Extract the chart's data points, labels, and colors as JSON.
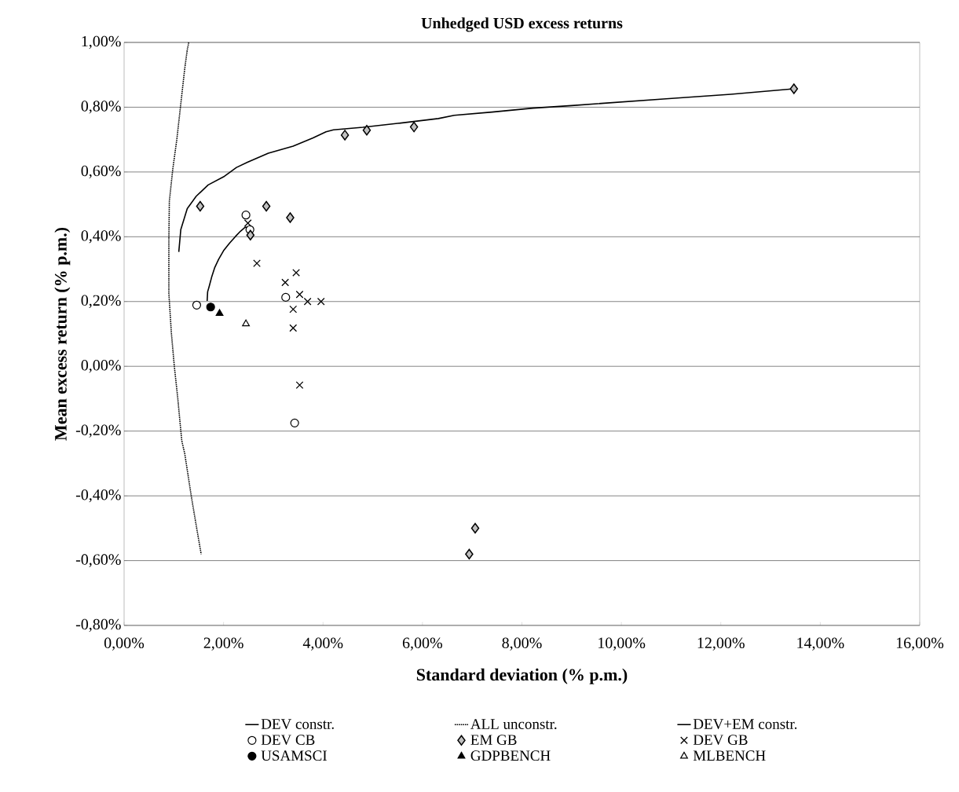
{
  "chart_data": {
    "type": "scatter",
    "title": "Unhedged USD excess returns",
    "xlabel": "Standard deviation (% p.m.)",
    "ylabel": "Mean excess return (% p.m.)",
    "xlim": [
      0,
      16
    ],
    "ylim": [
      -0.8,
      1.0
    ],
    "xticks": [
      {
        "value": 0,
        "label": "0,00%"
      },
      {
        "value": 2,
        "label": "2,00%"
      },
      {
        "value": 4,
        "label": "4,00%"
      },
      {
        "value": 6,
        "label": "6,00%"
      },
      {
        "value": 8,
        "label": "8,00%"
      },
      {
        "value": 10,
        "label": "10,00%"
      },
      {
        "value": 12,
        "label": "12,00%"
      },
      {
        "value": 14,
        "label": "14,00%"
      },
      {
        "value": 16,
        "label": "16,00%"
      }
    ],
    "yticks": [
      {
        "value": -0.8,
        "label": "-0,80%"
      },
      {
        "value": -0.6,
        "label": "-0,60%"
      },
      {
        "value": -0.4,
        "label": "-0,40%"
      },
      {
        "value": -0.2,
        "label": "-0,20%"
      },
      {
        "value": 0,
        "label": "0,00%"
      },
      {
        "value": 0.2,
        "label": "0,20%"
      },
      {
        "value": 0.4,
        "label": "0,40%"
      },
      {
        "value": 0.6,
        "label": "0,60%"
      },
      {
        "value": 0.8,
        "label": "0,80%"
      },
      {
        "value": 1.0,
        "label": "1,00%"
      }
    ],
    "grid": "y",
    "legend": "bottom",
    "series": [
      {
        "name": "DEV constr.",
        "type": "line",
        "marker": "none",
        "line_style": "solid",
        "color": "#000000",
        "x": [
          1.67,
          1.68,
          1.71,
          1.76,
          1.82,
          1.9,
          2.0,
          2.12,
          2.24,
          2.34,
          2.44,
          2.53
        ],
        "values": [
          0.202,
          0.23,
          0.246,
          0.275,
          0.304,
          0.33,
          0.357,
          0.38,
          0.401,
          0.417,
          0.43,
          0.425
        ]
      },
      {
        "name": "ALL unconstr.",
        "type": "line",
        "marker": "none",
        "line_style": "dotted",
        "color": "#000000",
        "x": [
          1.3,
          1.27,
          1.22,
          1.14,
          1.06,
          0.98,
          0.91,
          0.9,
          0.9,
          0.95,
          1.01,
          1.08,
          1.16,
          1.22,
          1.35,
          1.46,
          1.55
        ],
        "values": [
          1.0,
          0.977,
          0.92,
          0.81,
          0.7,
          0.61,
          0.51,
          0.39,
          0.226,
          0.104,
          0.0,
          -0.1,
          -0.23,
          -0.27,
          -0.4,
          -0.5,
          -0.58
        ]
      },
      {
        "name": "DEV+EM constr.",
        "type": "line",
        "marker": "none",
        "line_style": "solid",
        "color": "#000000",
        "x": [
          1.1,
          1.14,
          1.27,
          1.45,
          1.69,
          2.0,
          2.26,
          2.48,
          2.9,
          3.4,
          3.8,
          4.06,
          4.21,
          4.8,
          5.5,
          6.32,
          6.64,
          7.4,
          8.22,
          9.0,
          10.9,
          12.2,
          13.47
        ],
        "values": [
          0.353,
          0.422,
          0.487,
          0.525,
          0.56,
          0.585,
          0.614,
          0.63,
          0.658,
          0.68,
          0.705,
          0.724,
          0.73,
          0.738,
          0.75,
          0.765,
          0.775,
          0.785,
          0.797,
          0.805,
          0.826,
          0.84,
          0.857
        ]
      },
      {
        "name": "DEV CB",
        "marker": "circle",
        "color": "#ffffff",
        "x": [
          1.46,
          3.25,
          2.53,
          2.45,
          3.43
        ],
        "values": [
          0.189,
          0.213,
          0.422,
          0.467,
          -0.175
        ]
      },
      {
        "name": "EM GB",
        "marker": "diamond",
        "color": "#c0c0c0",
        "x": [
          1.53,
          2.86,
          2.54,
          3.34,
          4.44,
          4.88,
          5.83,
          13.47,
          7.06,
          6.94
        ],
        "values": [
          0.494,
          0.494,
          0.405,
          0.459,
          0.714,
          0.729,
          0.739,
          0.857,
          -0.5,
          -0.58
        ]
      },
      {
        "name": "DEV GB",
        "marker": "cross",
        "color": "#000000",
        "x": [
          2.49,
          2.67,
          3.46,
          3.24,
          3.53,
          3.69,
          3.96,
          3.4,
          3.4,
          3.53
        ],
        "values": [
          0.442,
          0.318,
          0.289,
          0.259,
          0.222,
          0.2,
          0.2,
          0.176,
          0.118,
          -0.058
        ]
      },
      {
        "name": "USAMSCI",
        "marker": "circle",
        "color": "#000000",
        "x": [
          1.74
        ],
        "values": [
          0.183
        ]
      },
      {
        "name": "GDPBENCH",
        "marker": "triangle",
        "color": "#000000",
        "x": [
          1.92
        ],
        "values": [
          0.163
        ]
      },
      {
        "name": "MLBENCH",
        "marker": "triangle",
        "color": "#ffffff",
        "x": [
          2.45
        ],
        "values": [
          0.131
        ]
      }
    ]
  }
}
